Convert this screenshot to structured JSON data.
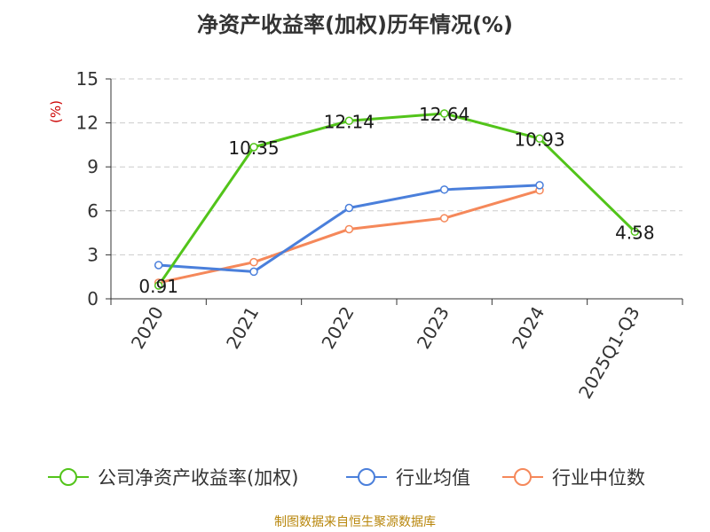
{
  "chart_data": {
    "type": "line",
    "title": "净资产收益率(加权)历年情况(%)",
    "ylabel": "(%)",
    "xlabel": "",
    "categories": [
      "2020",
      "2021",
      "2022",
      "2023",
      "2024",
      "2025Q1-Q3"
    ],
    "ylim": [
      0,
      15
    ],
    "yticks": [
      0,
      3,
      6,
      9,
      12,
      15
    ],
    "grid": true,
    "legend_position": "bottom",
    "series": [
      {
        "name": "公司净资产收益率(加权)",
        "color": "#52c41a",
        "values": [
          0.91,
          10.35,
          12.14,
          12.64,
          10.93,
          4.58
        ],
        "labels": [
          "0.91",
          "10.35",
          "12.14",
          "12.64",
          "10.93",
          "4.58"
        ]
      },
      {
        "name": "行业均值",
        "color": "#4a7fdb",
        "values": [
          2.3,
          1.85,
          6.2,
          7.45,
          7.75,
          null
        ]
      },
      {
        "name": "行业中位数",
        "color": "#f5885a",
        "values": [
          1.1,
          2.5,
          4.75,
          5.5,
          7.4,
          null
        ]
      }
    ]
  },
  "footer": {
    "source": "制图数据来自恒生聚源数据库"
  }
}
